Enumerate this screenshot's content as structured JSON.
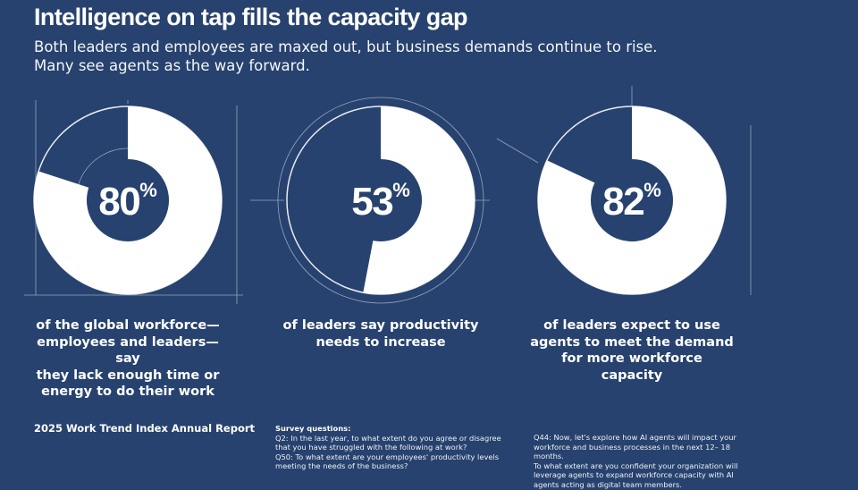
{
  "title": "Intelligence on tap fills the capacity gap",
  "subtitle_line1": "Both leaders and employees are maxed out, but business demands continue to rise.",
  "subtitle_line2": "Many see agents as the way forward.",
  "colors": {
    "background": "#27426e",
    "ring": "#ffffff",
    "line": "#c7d2e3"
  },
  "chart_data": [
    {
      "type": "pie",
      "value": 80,
      "value_label": "80",
      "unit": "%",
      "caption": [
        "of the global workforce—",
        "employees and leaders—say",
        "they lack enough time or",
        "energy to do their work"
      ]
    },
    {
      "type": "pie",
      "value": 53,
      "value_label": "53",
      "unit": "%",
      "caption": [
        "of leaders say productivity",
        "needs to increase"
      ]
    },
    {
      "type": "pie",
      "value": 82,
      "value_label": "82",
      "unit": "%",
      "caption": [
        "of leaders expect to use",
        "agents to meet the demand",
        "for more workforce capacity"
      ]
    }
  ],
  "footer": {
    "report": "2025 Work Trend Index Annual Report",
    "survey_heading": "Survey questions:",
    "q2": "Q2: In the last year, to what extent do you agree or disagree that you have struggled with the following at work?",
    "q50": "Q50: To what extent are your employees' productivity levels meeting the needs of the business?",
    "q44_line1": "Q44: Now, let's explore how AI agents will impact your workforce and business processes in the next 12– 18 months.",
    "q44_line2": "To what extent are you confident your organization will leverage agents to expand workforce capacity with AI agents acting as digital team members."
  }
}
